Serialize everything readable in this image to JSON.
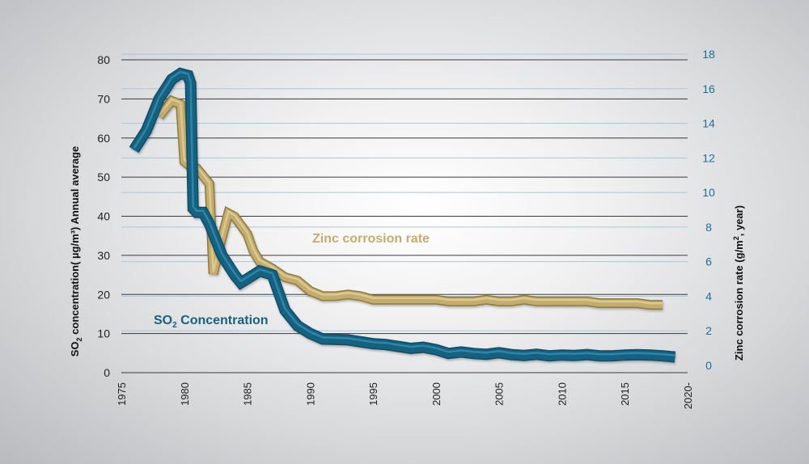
{
  "chart_data": {
    "type": "line",
    "title": "",
    "x_ticks": [
      "1975",
      "1980",
      "1985",
      "1990",
      "1995",
      "2000",
      "2005",
      "2010",
      "2015",
      "2020-"
    ],
    "xlim": [
      1975,
      2020
    ],
    "y_left": {
      "label_parts": [
        "SO",
        "2",
        " concentration( µg/m³) Annual average"
      ],
      "ticks": [
        0,
        10,
        20,
        30,
        40,
        50,
        60,
        70,
        80
      ],
      "range": [
        0,
        80
      ],
      "color": "#1e1e1e"
    },
    "y_right": {
      "label_parts": [
        "Zinc corrosion rate (g/m",
        "2",
        ", year)"
      ],
      "ticks": [
        0,
        2,
        4,
        6,
        8,
        10,
        12,
        14,
        16,
        18
      ],
      "range": [
        0,
        18
      ],
      "color": "#1b6f97"
    },
    "grid": true,
    "series": [
      {
        "name": "Zinc corrosion rate",
        "axis": "right",
        "color": "#c4ad6c",
        "points": [
          [
            1978,
            14.4
          ],
          [
            1979,
            15.3
          ],
          [
            1979.7,
            15.1
          ],
          [
            1980,
            11.8
          ],
          [
            1980.5,
            11.5
          ],
          [
            1981,
            11.4
          ],
          [
            1982,
            10.5
          ],
          [
            1982.3,
            5.3
          ],
          [
            1983,
            7.4
          ],
          [
            1983.5,
            8.8
          ],
          [
            1984,
            8.6
          ],
          [
            1985,
            7.6
          ],
          [
            1985.5,
            6.6
          ],
          [
            1986,
            6.0
          ],
          [
            1987,
            5.6
          ],
          [
            1988,
            5.1
          ],
          [
            1989,
            4.9
          ],
          [
            1990,
            4.3
          ],
          [
            1991,
            4.0
          ],
          [
            1992,
            4.0
          ],
          [
            1993,
            4.1
          ],
          [
            1994,
            4.0
          ],
          [
            1995,
            3.8
          ],
          [
            1996,
            3.8
          ],
          [
            1997,
            3.8
          ],
          [
            1998,
            3.8
          ],
          [
            1999,
            3.8
          ],
          [
            2000,
            3.8
          ],
          [
            2001,
            3.7
          ],
          [
            2002,
            3.7
          ],
          [
            2003,
            3.7
          ],
          [
            2004,
            3.8
          ],
          [
            2005,
            3.7
          ],
          [
            2006,
            3.7
          ],
          [
            2007,
            3.8
          ],
          [
            2008,
            3.7
          ],
          [
            2009,
            3.7
          ],
          [
            2010,
            3.7
          ],
          [
            2011,
            3.7
          ],
          [
            2012,
            3.7
          ],
          [
            2013,
            3.6
          ],
          [
            2014,
            3.6
          ],
          [
            2015,
            3.6
          ],
          [
            2016,
            3.6
          ],
          [
            2017,
            3.5
          ],
          [
            2018,
            3.5
          ]
        ]
      },
      {
        "name": "SO2 Concentration",
        "label_parts": [
          "SO",
          "2",
          " Concentration"
        ],
        "axis": "left",
        "color": "#17617f",
        "points": [
          [
            1976,
            57
          ],
          [
            1977,
            62
          ],
          [
            1978,
            70
          ],
          [
            1979,
            75
          ],
          [
            1979.7,
            76.5
          ],
          [
            1980.3,
            76
          ],
          [
            1980.5,
            74
          ],
          [
            1980.7,
            42
          ],
          [
            1981,
            41
          ],
          [
            1981.5,
            41
          ],
          [
            1982,
            38
          ],
          [
            1983,
            30
          ],
          [
            1984,
            25
          ],
          [
            1984.5,
            23
          ],
          [
            1985,
            24
          ],
          [
            1986,
            26
          ],
          [
            1987,
            25
          ],
          [
            1988,
            16
          ],
          [
            1989,
            12
          ],
          [
            1990,
            10
          ],
          [
            1991,
            8.6
          ],
          [
            1992,
            8.5
          ],
          [
            1993,
            8.4
          ],
          [
            1994,
            7.9
          ],
          [
            1995,
            7.4
          ],
          [
            1996,
            7.2
          ],
          [
            1997,
            6.7
          ],
          [
            1998,
            6.2
          ],
          [
            1999,
            6.5
          ],
          [
            2000,
            5.9
          ],
          [
            2001,
            4.9
          ],
          [
            2002,
            5.3
          ],
          [
            2003,
            4.9
          ],
          [
            2004,
            4.7
          ],
          [
            2005,
            5.1
          ],
          [
            2006,
            4.6
          ],
          [
            2007,
            4.4
          ],
          [
            2008,
            4.7
          ],
          [
            2009,
            4.3
          ],
          [
            2010,
            4.5
          ],
          [
            2011,
            4.4
          ],
          [
            2012,
            4.6
          ],
          [
            2013,
            4.3
          ],
          [
            2014,
            4.3
          ],
          [
            2015,
            4.5
          ],
          [
            2016,
            4.6
          ],
          [
            2017,
            4.5
          ],
          [
            2018,
            4.3
          ],
          [
            2019,
            4.0
          ]
        ]
      }
    ]
  }
}
